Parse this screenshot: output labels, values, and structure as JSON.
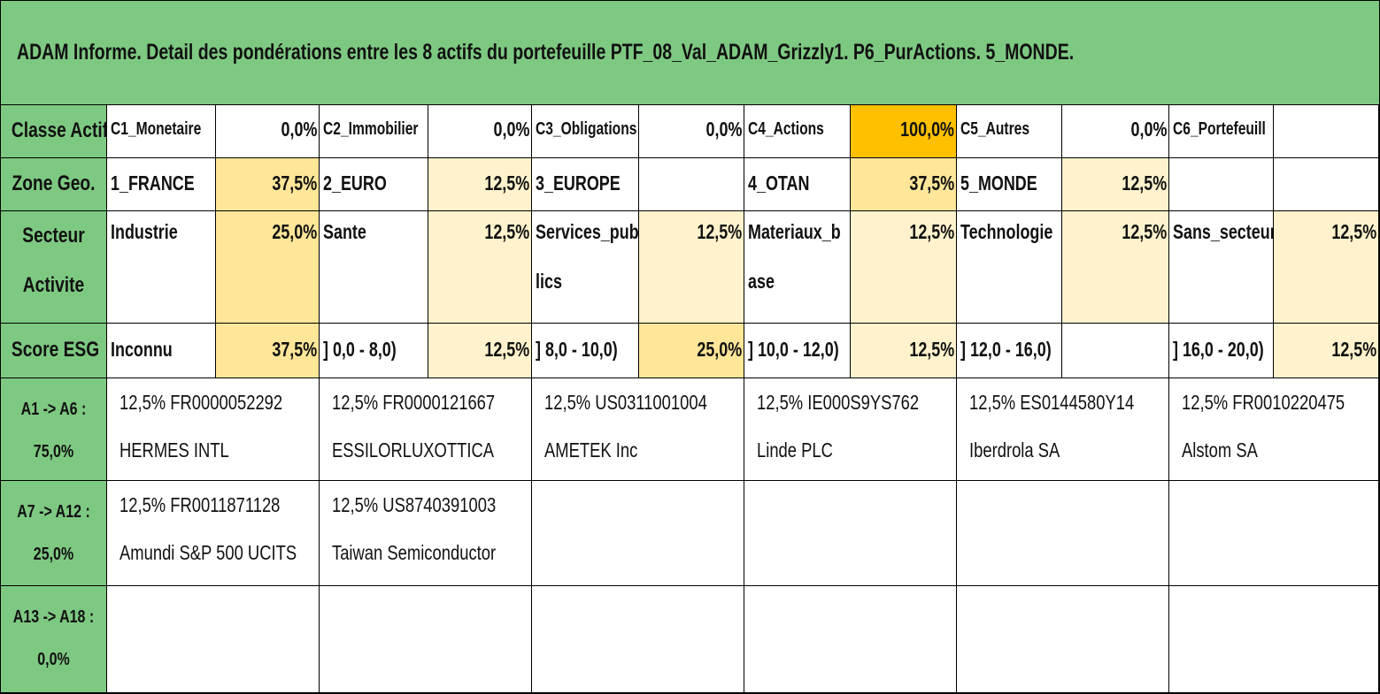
{
  "title": "ADAM Informe. Detail des pondérations entre les 8 actifs du portefeuille PTF_08_Val_ADAM_Grizzly1. P6_PurActions. 5_MONDE.",
  "classe": {
    "header": "Classe Actif",
    "items": [
      {
        "label": "C1_Monetaire",
        "value": "0,0%"
      },
      {
        "label": "C2_Immobilier",
        "value": "0,0%"
      },
      {
        "label": "C3_Obligations",
        "value": "0,0%"
      },
      {
        "label": "C4_Actions",
        "value": "100,0%"
      },
      {
        "label": "C5_Autres",
        "value": "0,0%"
      },
      {
        "label": "C6_Portefeuill",
        "value": ""
      }
    ]
  },
  "zone": {
    "header": "Zone Geo.",
    "items": [
      {
        "label": "1_FRANCE",
        "value": "37,5%"
      },
      {
        "label": "2_EURO",
        "value": "12,5%"
      },
      {
        "label": "3_EUROPE",
        "value": ""
      },
      {
        "label": "4_OTAN",
        "value": "37,5%"
      },
      {
        "label": "5_MONDE",
        "value": "12,5%"
      },
      {
        "label": "",
        "value": ""
      }
    ]
  },
  "secteur": {
    "header_line1": "Secteur",
    "header_line2": "Activite",
    "items": [
      {
        "label": "Industrie",
        "label2": "",
        "value": "25,0%"
      },
      {
        "label": "Sante",
        "label2": "",
        "value": "12,5%"
      },
      {
        "label": "Services_pub",
        "label2": "lics",
        "value": "12,5%"
      },
      {
        "label": "Materiaux_b",
        "label2": "ase",
        "value": "12,5%"
      },
      {
        "label": "Technologie",
        "label2": "",
        "value": "12,5%"
      },
      {
        "label": "Sans_secteur",
        "label2": "",
        "value": "12,5%"
      }
    ]
  },
  "esg": {
    "header": "Score ESG",
    "items": [
      {
        "label": "Inconnu",
        "value": "37,5%"
      },
      {
        "label": "] 0,0 - 8,0)",
        "value": "12,5%"
      },
      {
        "label": "] 8,0 - 10,0)",
        "value": "25,0%"
      },
      {
        "label": "] 10,0 - 12,0)",
        "value": "12,5%"
      },
      {
        "label": "] 12,0 - 16,0)",
        "value": ""
      },
      {
        "label": "] 16,0 - 20,0)",
        "value": "12,5%"
      }
    ]
  },
  "asset_rows": [
    {
      "header_line1": "A1 -> A6 :",
      "header_line2": "75,0%",
      "assets": [
        {
          "line1": "12,5% FR0000052292",
          "line2": "HERMES INTL"
        },
        {
          "line1": "12,5% FR0000121667",
          "line2": "ESSILORLUXOTTICA"
        },
        {
          "line1": "12,5% US0311001004",
          "line2": "AMETEK Inc"
        },
        {
          "line1": "12,5% IE000S9YS762",
          "line2": "Linde PLC"
        },
        {
          "line1": "12,5% ES0144580Y14",
          "line2": "Iberdrola SA"
        },
        {
          "line1": "12,5% FR0010220475",
          "line2": "Alstom SA"
        }
      ]
    },
    {
      "header_line1": "A7 -> A12 :",
      "header_line2": "25,0%",
      "assets": [
        {
          "line1": "12,5% FR0011871128",
          "line2": "Amundi S&P 500 UCITS"
        },
        {
          "line1": "12,5% US8740391003",
          "line2": "Taiwan Semiconductor"
        },
        {
          "line1": "",
          "line2": ""
        },
        {
          "line1": "",
          "line2": ""
        },
        {
          "line1": "",
          "line2": ""
        },
        {
          "line1": "",
          "line2": ""
        }
      ]
    },
    {
      "header_line1": "A13 -> A18 :",
      "header_line2": "0,0%",
      "assets": [
        {
          "line1": "",
          "line2": ""
        },
        {
          "line1": "",
          "line2": ""
        },
        {
          "line1": "",
          "line2": ""
        },
        {
          "line1": "",
          "line2": ""
        },
        {
          "line1": "",
          "line2": ""
        },
        {
          "line1": "",
          "line2": ""
        }
      ]
    }
  ],
  "colors": {
    "header_green": "#7ec982",
    "light_yellow": "#fff2cc",
    "mid_yellow": "#ffe699",
    "orange": "#ffc000"
  }
}
